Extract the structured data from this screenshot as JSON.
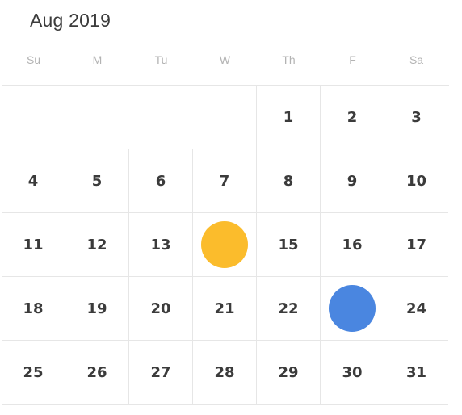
{
  "calendar": {
    "month_label": "Aug 2019",
    "weekdays": [
      "Su",
      "M",
      "Tu",
      "W",
      "Th",
      "F",
      "Sa"
    ],
    "weeks": [
      [
        "",
        "",
        "",
        "",
        "1",
        "2",
        "3"
      ],
      [
        "4",
        "5",
        "6",
        "7",
        "8",
        "9",
        "10"
      ],
      [
        "11",
        "12",
        "13",
        "",
        "15",
        "16",
        "17"
      ],
      [
        "18",
        "19",
        "20",
        "21",
        "22",
        "",
        "24"
      ],
      [
        "25",
        "26",
        "27",
        "28",
        "29",
        "30",
        "31"
      ]
    ],
    "markers": [
      {
        "day": "14",
        "color": "#FBBC2C"
      },
      {
        "day": "23",
        "color": "#4A86E0"
      }
    ]
  }
}
